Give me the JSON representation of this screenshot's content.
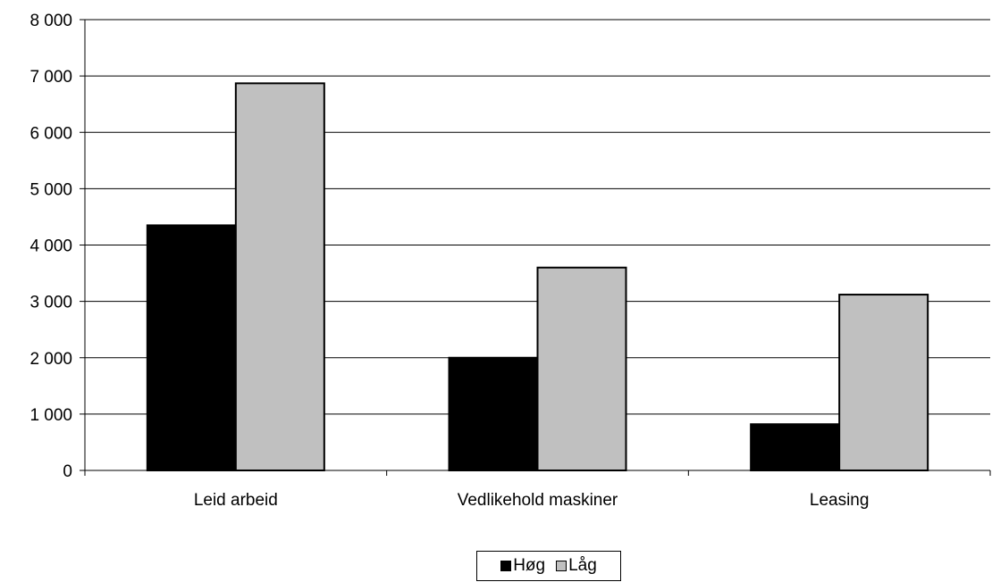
{
  "chart_data": {
    "type": "bar",
    "categories": [
      "Leid arbeid",
      "Vedlikehold maskiner",
      "Leasing"
    ],
    "series": [
      {
        "name": "Høg",
        "values": [
          4350,
          2000,
          820
        ],
        "color": "#000000"
      },
      {
        "name": "Låg",
        "values": [
          6870,
          3600,
          3120
        ],
        "color": "#c0c0c0"
      }
    ],
    "ylim": [
      0,
      8000
    ],
    "yticks": [
      0,
      1000,
      2000,
      3000,
      4000,
      5000,
      6000,
      7000,
      8000
    ],
    "ytick_labels": [
      "0",
      "1 000",
      "2 000",
      "3 000",
      "4 000",
      "5 000",
      "6 000",
      "7 000",
      "8 000"
    ],
    "grid": true,
    "legend_position": "bottom"
  }
}
